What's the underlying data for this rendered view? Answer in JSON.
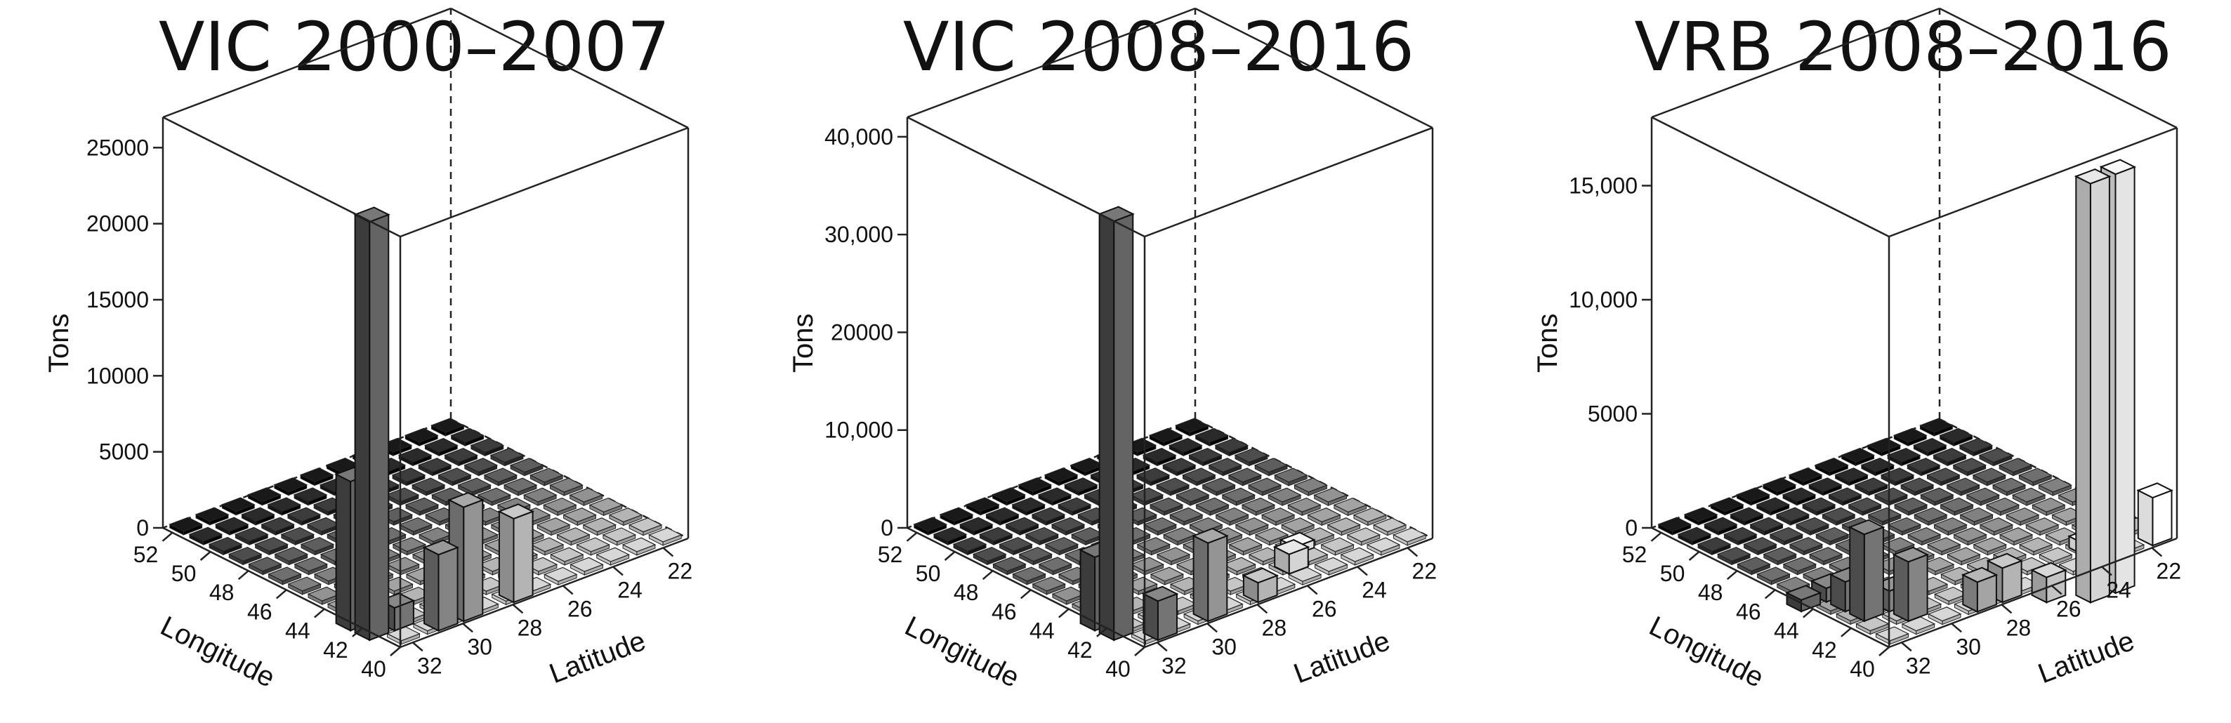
{
  "chart_data": [
    {
      "type": "bar3d",
      "title": "VIC 2000–2007",
      "zlabel": "Tons",
      "xlabel": "Longitude",
      "ylabel": "Latitude",
      "zlim": [
        0,
        27000
      ],
      "zticks": [
        0,
        5000,
        10000,
        15000,
        20000,
        25000
      ],
      "zticklabels": [
        "0",
        "5000",
        "10000",
        "15000",
        "20000",
        "25000"
      ],
      "longitude_ticks": [
        "52",
        "50",
        "48",
        "46",
        "44",
        "42",
        "40"
      ],
      "latitude_ticks": [
        "32",
        "30",
        "28",
        "26",
        "24",
        "22"
      ],
      "bars": [
        {
          "longitude": 42,
          "latitude": 32,
          "tons": 9800
        },
        {
          "longitude": 41,
          "latitude": 31,
          "tons": 1500
        },
        {
          "longitude": 41,
          "latitude": 32,
          "tons": 27500
        },
        {
          "longitude": 40,
          "latitude": 30,
          "tons": 5000
        },
        {
          "longitude": 40,
          "latitude": 29,
          "tons": 7500
        },
        {
          "longitude": 40,
          "latitude": 27,
          "tons": 5500
        }
      ]
    },
    {
      "type": "bar3d",
      "title": "VIC 2008–2016",
      "zlabel": "Tons",
      "xlabel": "Longitude",
      "ylabel": "Latitude",
      "zlim": [
        0,
        42000
      ],
      "zticks": [
        0,
        10000,
        20000,
        30000,
        40000
      ],
      "zticklabels": [
        "0",
        "10,000",
        "20000",
        "30,000",
        "40,000"
      ],
      "longitude_ticks": [
        "52",
        "50",
        "48",
        "46",
        "44",
        "42",
        "40"
      ],
      "latitude_ticks": [
        "32",
        "30",
        "28",
        "26",
        "24",
        "22"
      ],
      "bars": [
        {
          "longitude": 42,
          "latitude": 32,
          "tons": 7500
        },
        {
          "longitude": 41,
          "latitude": 32,
          "tons": 43000
        },
        {
          "longitude": 40,
          "latitude": 31,
          "tons": 4000
        },
        {
          "longitude": 40,
          "latitude": 29,
          "tons": 8000
        },
        {
          "longitude": 40,
          "latitude": 27,
          "tons": 2000
        },
        {
          "longitude": 41,
          "latitude": 25,
          "tons": 2000
        },
        {
          "longitude": 42,
          "latitude": 24,
          "tons": 800
        }
      ]
    },
    {
      "type": "bar3d",
      "title": "VRB 2008–2016",
      "zlabel": "Tons",
      "xlabel": "Longitude",
      "ylabel": "Latitude",
      "zlim": [
        0,
        18000
      ],
      "zticks": [
        0,
        5000,
        10000,
        15000
      ],
      "zticklabels": [
        "0",
        "5000",
        "10,000",
        "15,000"
      ],
      "longitude_ticks": [
        "52",
        "50",
        "48",
        "46",
        "44",
        "42",
        "40"
      ],
      "latitude_ticks": [
        "32",
        "30",
        "28",
        "26",
        "24",
        "22"
      ],
      "bars": [
        {
          "longitude": 44,
          "latitude": 32,
          "tons": 500
        },
        {
          "longitude": 44,
          "latitude": 31,
          "tons": 600
        },
        {
          "longitude": 43,
          "latitude": 31,
          "tons": 1300
        },
        {
          "longitude": 42,
          "latitude": 31,
          "tons": 3800
        },
        {
          "longitude": 42,
          "latitude": 30,
          "tons": 900
        },
        {
          "longitude": 41,
          "latitude": 30,
          "tons": 2600
        },
        {
          "longitude": 40,
          "latitude": 28,
          "tons": 1300
        },
        {
          "longitude": 40,
          "latitude": 27,
          "tons": 1500
        },
        {
          "longitude": 39,
          "latitude": 26,
          "tons": 1100
        },
        {
          "longitude": 38,
          "latitude": 25,
          "tons": 19000
        },
        {
          "longitude": 38,
          "latitude": 24,
          "tons": 19000
        },
        {
          "longitude": 39,
          "latitude": 24,
          "tons": 7500
        },
        {
          "longitude": 40,
          "latitude": 23,
          "tons": 1800
        },
        {
          "longitude": 41,
          "latitude": 23,
          "tons": 500
        },
        {
          "longitude": 40,
          "latitude": 21,
          "tons": 2100
        }
      ]
    }
  ]
}
